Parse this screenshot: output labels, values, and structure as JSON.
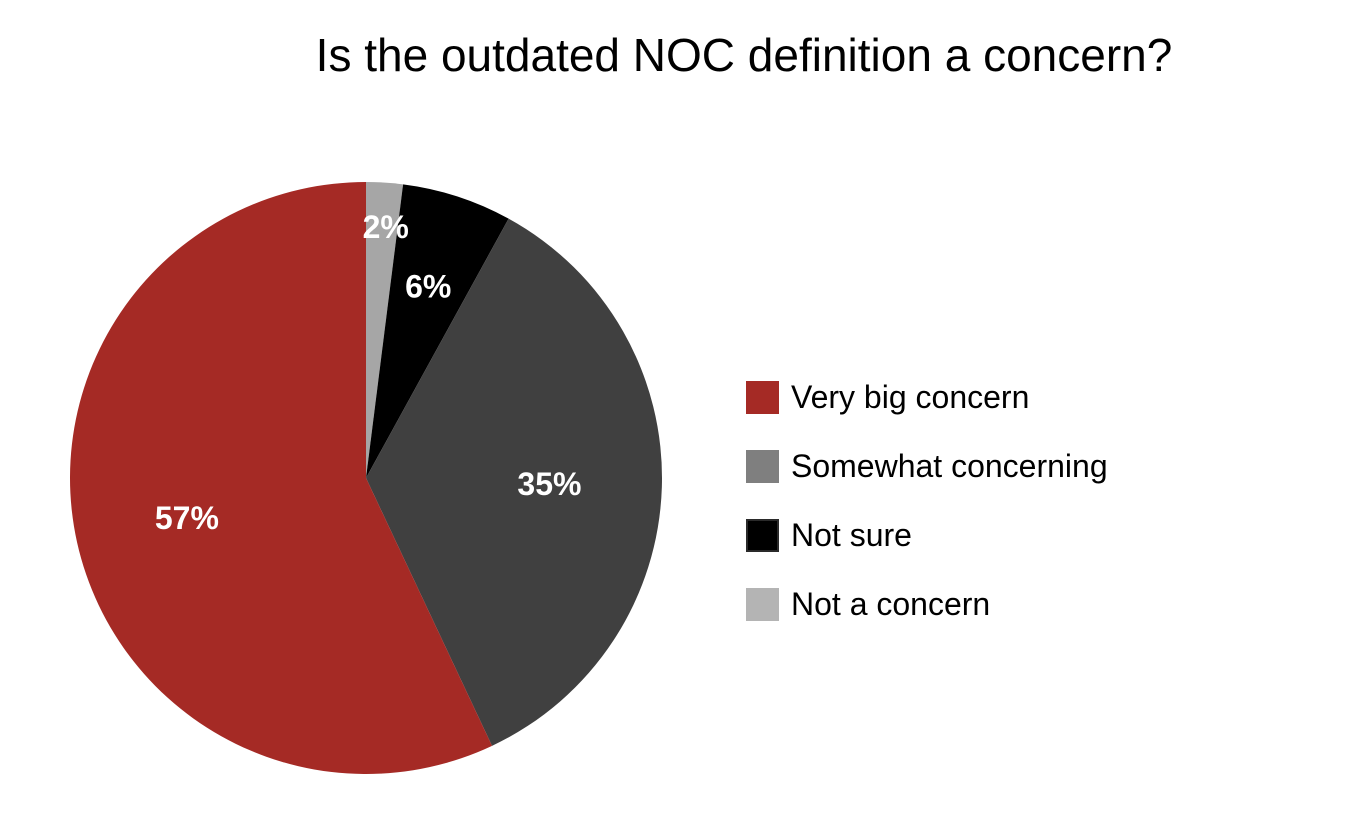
{
  "chart_data": {
    "type": "pie",
    "title": "Is the outdated NOC definition a concern?",
    "slices": [
      {
        "label": "Very big concern",
        "value": 57,
        "display": "57%",
        "color": "#a52a25"
      },
      {
        "label": "Somewhat concerning",
        "value": 35,
        "display": "35%",
        "color": "#404040"
      },
      {
        "label": "Not sure",
        "value": 6,
        "display": "6%",
        "color": "#000000"
      },
      {
        "label": "Not a concern",
        "value": 2,
        "display": "2%",
        "color": "#a6a6a6"
      }
    ],
    "legend": {
      "placement": "right",
      "entries": [
        {
          "label": "Very big concern",
          "color": "#a52a25"
        },
        {
          "label": "Somewhat concerning",
          "color": "#7f7f7f"
        },
        {
          "label": "Not sure",
          "color": "#000000"
        },
        {
          "label": "Not a concern",
          "color": "#b4b4b4"
        }
      ]
    },
    "data_label_color": "#ffffff"
  }
}
